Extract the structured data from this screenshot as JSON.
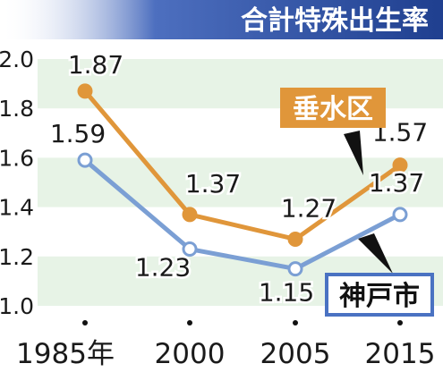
{
  "chart_data": {
    "type": "line",
    "title": "合計特殊出生率",
    "categories": [
      "1985年",
      "2000",
      "2005",
      "2015"
    ],
    "x_ticks": [
      "1985年",
      "2000",
      "2005",
      "2015"
    ],
    "y_ticks": [
      "2.0",
      "1.8",
      "1.6",
      "1.4",
      "1.2",
      "1.0"
    ],
    "ylim": [
      1.0,
      2.0
    ],
    "grid": "alternating horizontal bands",
    "series": [
      {
        "name": "垂水区",
        "values": [
          1.87,
          1.37,
          1.27,
          1.57
        ],
        "labels": [
          "1.87",
          "1.37",
          "1.27",
          "1.57"
        ],
        "color": "#e0963a"
      },
      {
        "name": "神戸市",
        "values": [
          1.59,
          1.23,
          1.15,
          1.37
        ],
        "labels": [
          "1.59",
          "1.23",
          "1.15",
          "1.37"
        ],
        "color": "#7b9fd4"
      }
    ],
    "colors": {
      "title_bar": "#1f3f8f",
      "band": "#e7f3e6",
      "callout_orange_bg": "#e0963a",
      "callout_blue_border": "#4a72c2"
    }
  }
}
